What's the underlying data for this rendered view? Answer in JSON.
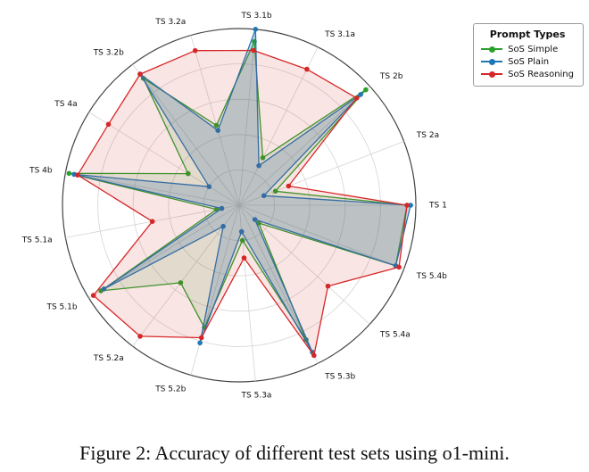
{
  "figure": {
    "caption": "Figure 2: Accuracy of different test sets using o1-mini."
  },
  "legend": {
    "title": "Prompt Types"
  },
  "chart_data": {
    "type": "radar",
    "title": "",
    "rlim": [
      0,
      1
    ],
    "r_ticks": [
      0.2,
      0.4,
      0.6,
      0.8,
      1.0
    ],
    "grid": true,
    "direction": "counterclockwise",
    "start_axis_angle_deg": 0,
    "legend_position": "upper right",
    "categories": [
      "TS 1",
      "TS 2a",
      "TS 2b",
      "TS 3.1a",
      "TS 3.1b",
      "TS 3.2a",
      "TS 3.2b",
      "TS 4a",
      "TS 4b",
      "TS 5.1a",
      "TS 5.1b",
      "TS 5.2a",
      "TS 5.2b",
      "TS 5.3a",
      "TS 5.3b",
      "TS 5.4a",
      "TS 5.4b"
    ],
    "series": [
      {
        "name": "SoS Simple",
        "color": "#2ca02c",
        "fill_opacity": 0.13,
        "values": [
          0.95,
          0.22,
          0.97,
          0.3,
          0.93,
          0.47,
          0.9,
          0.34,
          0.98,
          0.13,
          0.92,
          0.55,
          0.72,
          0.2,
          0.85,
          0.15,
          0.95
        ]
      },
      {
        "name": "SoS Plain",
        "color": "#1f77b4",
        "fill_opacity": 0.22,
        "values": [
          0.97,
          0.15,
          0.93,
          0.25,
          1.0,
          0.44,
          0.93,
          0.2,
          0.95,
          0.1,
          0.9,
          0.15,
          0.81,
          0.15,
          0.93,
          0.12,
          0.95
        ]
      },
      {
        "name": "SoS Reasoning",
        "color": "#d62728",
        "fill_opacity": 0.12,
        "values": [
          0.95,
          0.3,
          0.9,
          0.86,
          0.88,
          0.91,
          0.93,
          0.87,
          0.93,
          0.5,
          0.97,
          0.93,
          0.78,
          0.3,
          0.95,
          0.68,
          0.97
        ]
      }
    ]
  }
}
